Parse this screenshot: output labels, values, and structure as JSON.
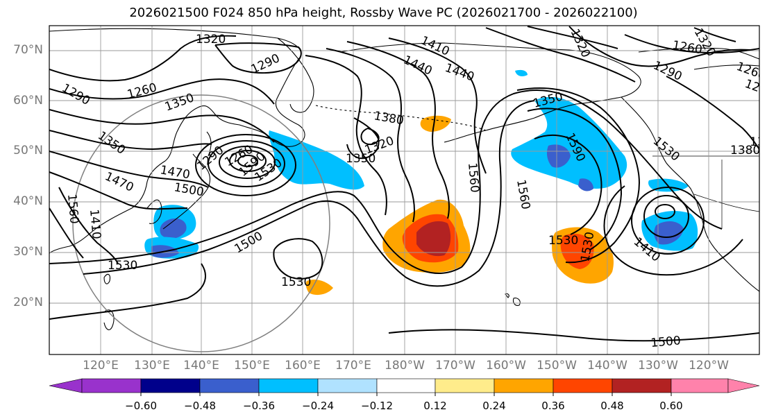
{
  "title": "2026021500 F024 850 hPa height, Rossby Wave PC (2026021700 - 2026022100)",
  "lat_labels": [
    "70°N",
    "60°N",
    "50°N",
    "40°N",
    "30°N",
    "20°N"
  ],
  "lon_labels": [
    "120°E",
    "130°E",
    "140°E",
    "150°E",
    "160°E",
    "170°E",
    "180°W",
    "170°W",
    "160°W",
    "150°W",
    "140°W",
    "130°W",
    "120°W"
  ],
  "contour_labels": [
    "1320",
    "1290",
    "1260",
    "1290",
    "1350",
    "1470",
    "1560",
    "1530",
    "1500",
    "1530",
    "1530",
    "1350",
    "1320",
    "1380",
    "1410",
    "1440",
    "1560",
    "1590",
    "1530",
    "1410",
    "1320",
    "1260",
    "1290",
    "1380",
    "1500",
    "1290",
    "1260",
    "1410",
    "1590",
    "1530",
    "1320",
    "1350",
    "1380",
    "1530",
    "1560",
    "1260",
    "1290",
    "1350",
    "1440",
    "1470",
    "1500"
  ],
  "colorbar": {
    "ticks": [
      "−0.60",
      "−0.48",
      "−0.36",
      "−0.24",
      "−0.12",
      "0.12",
      "0.24",
      "0.36",
      "0.48",
      "0.60"
    ],
    "colors": [
      "#9932cc",
      "#00008b",
      "#3a5fcd",
      "#00bfff",
      "#b0e2ff",
      "#ffffff",
      "#ffec8b",
      "#ffa500",
      "#ff4500",
      "#b22222",
      "#ff82ab"
    ]
  },
  "colors": {
    "blue_light": "#00bfff",
    "blue_mid": "#3a5fcd",
    "orange": "#ffa500",
    "red_orange": "#ff4500",
    "dark_red": "#b22222",
    "yellow": "#ffec8b"
  }
}
